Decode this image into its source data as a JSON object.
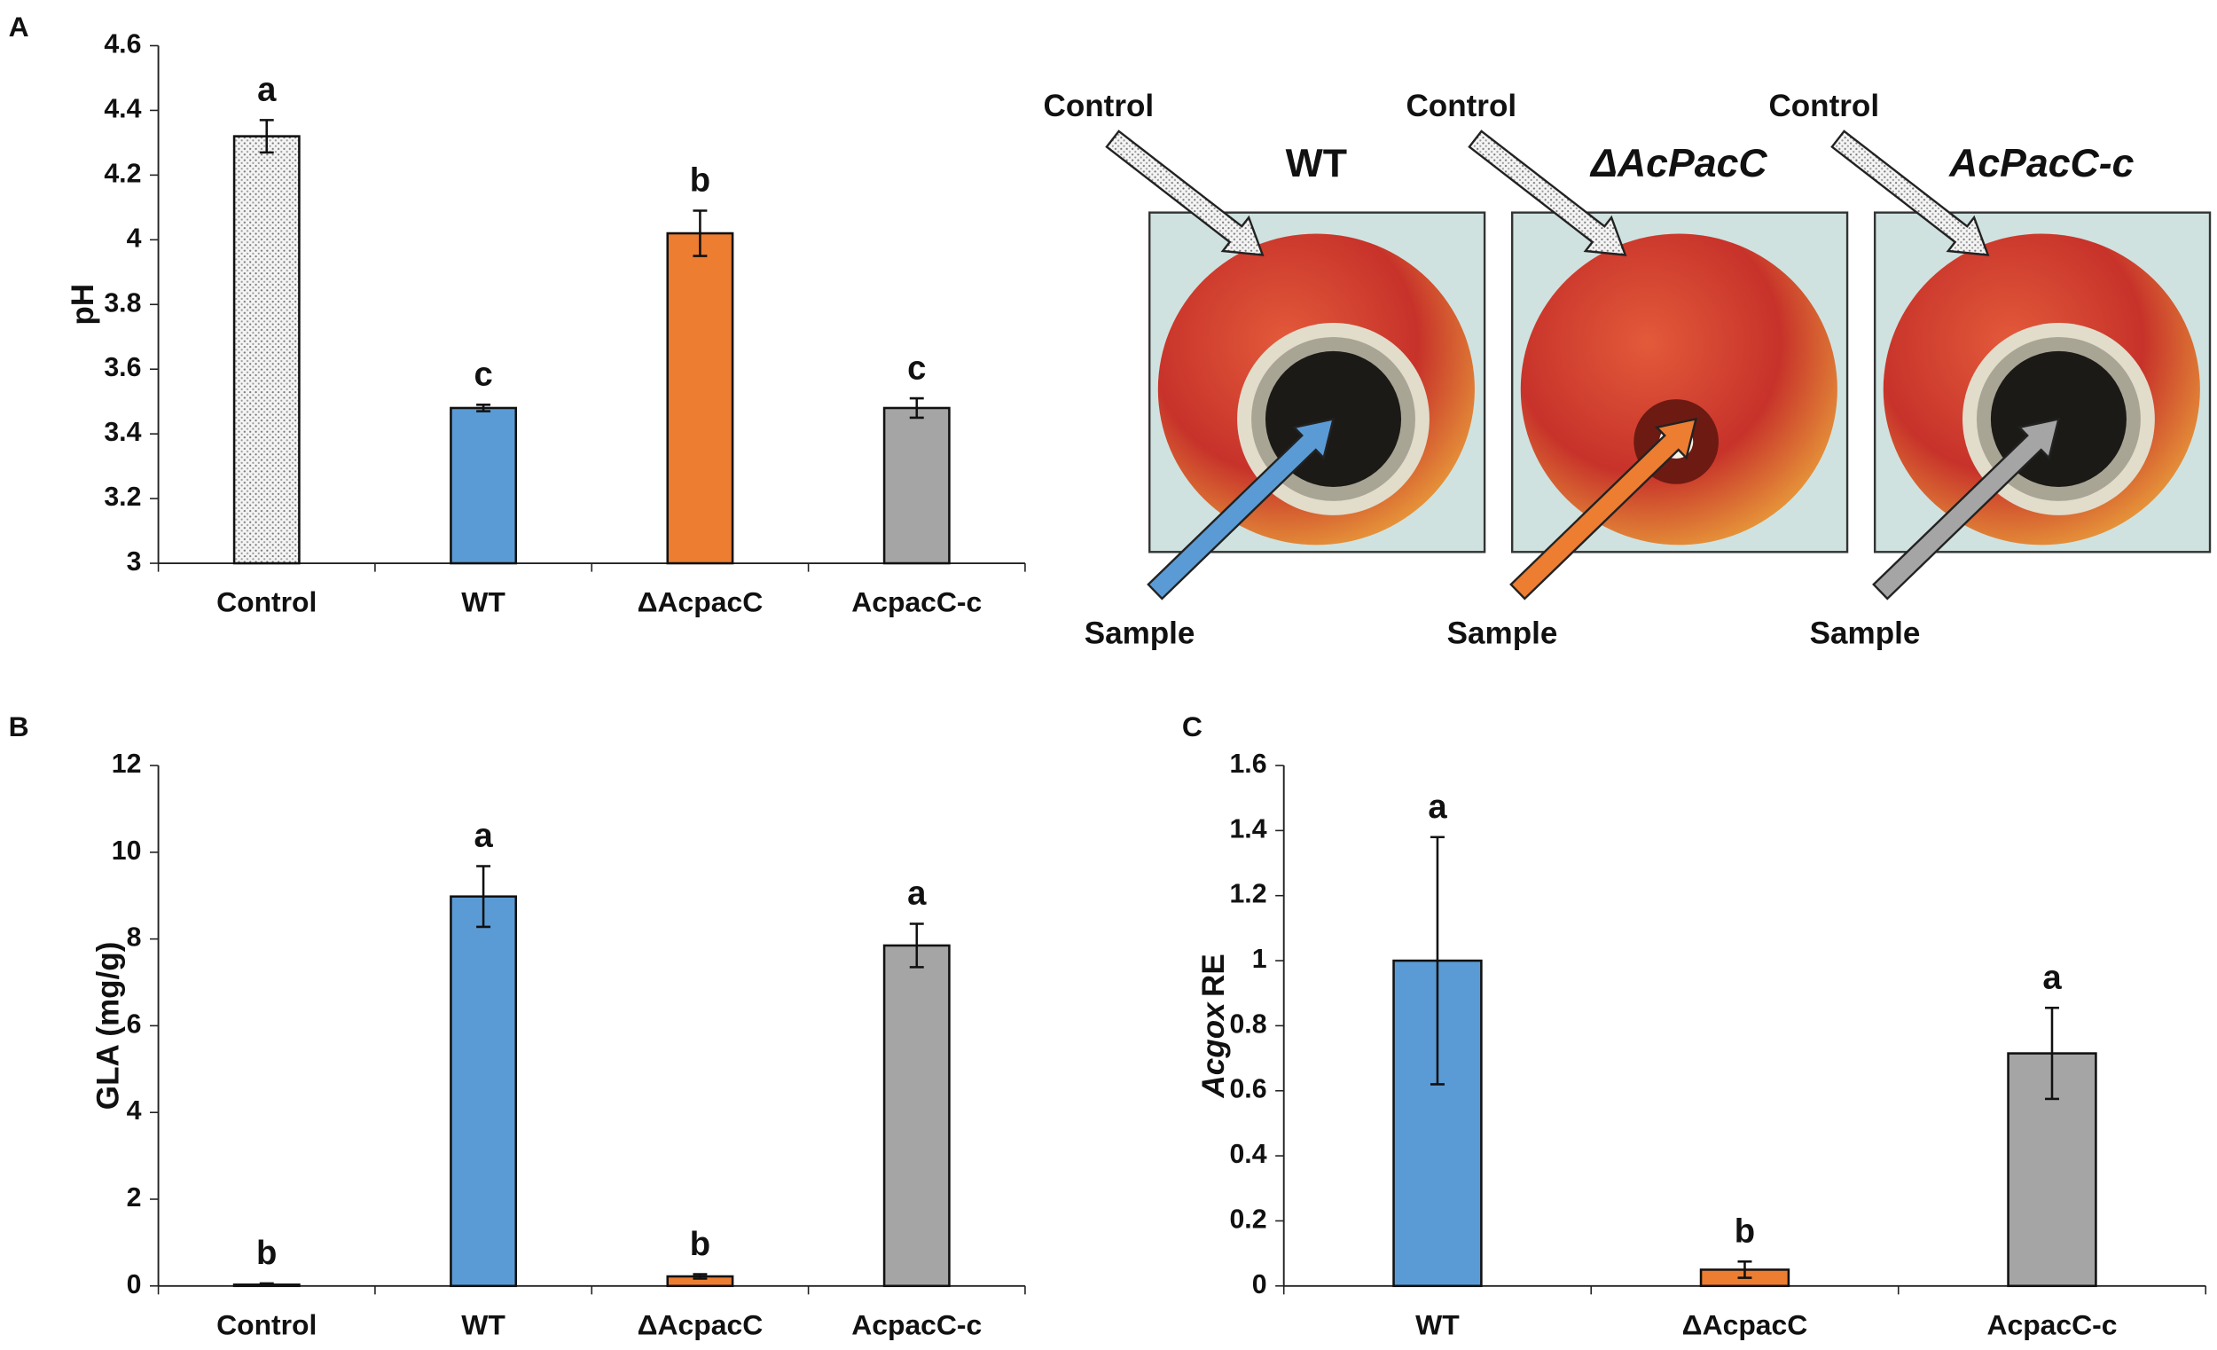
{
  "panel_labels": [
    "A",
    "B",
    "C"
  ],
  "chart_data": [
    {
      "type": "bar",
      "ylabel": "pH",
      "categories": [
        "Control",
        "WT",
        "ΔAcpacC",
        "AcpacC-c"
      ],
      "values": [
        4.32,
        3.48,
        4.02,
        3.48
      ],
      "errors": [
        0.05,
        0.01,
        0.07,
        0.03
      ],
      "annotations": [
        "a",
        "c",
        "b",
        "c"
      ],
      "colors": [
        "#eeeeee",
        "#5b9bd5",
        "#ed7d31",
        "#a5a5a5"
      ],
      "pattern": [
        "dots",
        null,
        null,
        null
      ],
      "ylim": [
        3,
        4.6
      ],
      "yticks": [
        3,
        3.2,
        3.4,
        3.6,
        3.8,
        4,
        4.2,
        4.4,
        4.6
      ]
    },
    {
      "type": "bar",
      "ylabel": "GLA (mg/g)",
      "categories": [
        "Control",
        "WT",
        "ΔAcpacC",
        "AcpacC-c"
      ],
      "values": [
        0.03,
        8.98,
        0.22,
        7.85
      ],
      "errors": [
        0.03,
        0.7,
        0.05,
        0.5
      ],
      "annotations": [
        "b",
        "a",
        "b",
        "a"
      ],
      "colors": [
        "#eeeeee",
        "#5b9bd5",
        "#ed7d31",
        "#a5a5a5"
      ],
      "pattern": [
        "dots",
        null,
        null,
        null
      ],
      "ylim": [
        0,
        12
      ],
      "yticks": [
        0,
        2,
        4,
        6,
        8,
        10,
        12
      ]
    },
    {
      "type": "bar",
      "ylabel_parts": [
        "Acgox",
        "RE"
      ],
      "categories": [
        "WT",
        "ΔAcpacC",
        "AcpacC-c"
      ],
      "values": [
        1.0,
        0.05,
        0.715
      ],
      "errors": [
        0.38,
        0.025,
        0.14
      ],
      "annotations": [
        "a",
        "b",
        "a"
      ],
      "colors": [
        "#5b9bd5",
        "#ed7d31",
        "#a5a5a5"
      ],
      "pattern": [
        null,
        null,
        null
      ],
      "ylim": [
        0,
        1.6
      ],
      "yticks": [
        0,
        0.2,
        0.4,
        0.6,
        0.8,
        1,
        1.2,
        1.4,
        1.6
      ]
    }
  ],
  "photos": [
    {
      "title": "WT",
      "italic": false,
      "control": "Control",
      "sample": "Sample",
      "arrow_color": "#5b9bd5"
    },
    {
      "title": "ΔAcPacC",
      "italic": true,
      "control": "Control",
      "sample": "Sample",
      "arrow_color": "#ed7d31"
    },
    {
      "title": "AcPacC-c",
      "italic": true,
      "control": "Control",
      "sample": "Sample",
      "arrow_color": "#a5a5a5"
    }
  ]
}
